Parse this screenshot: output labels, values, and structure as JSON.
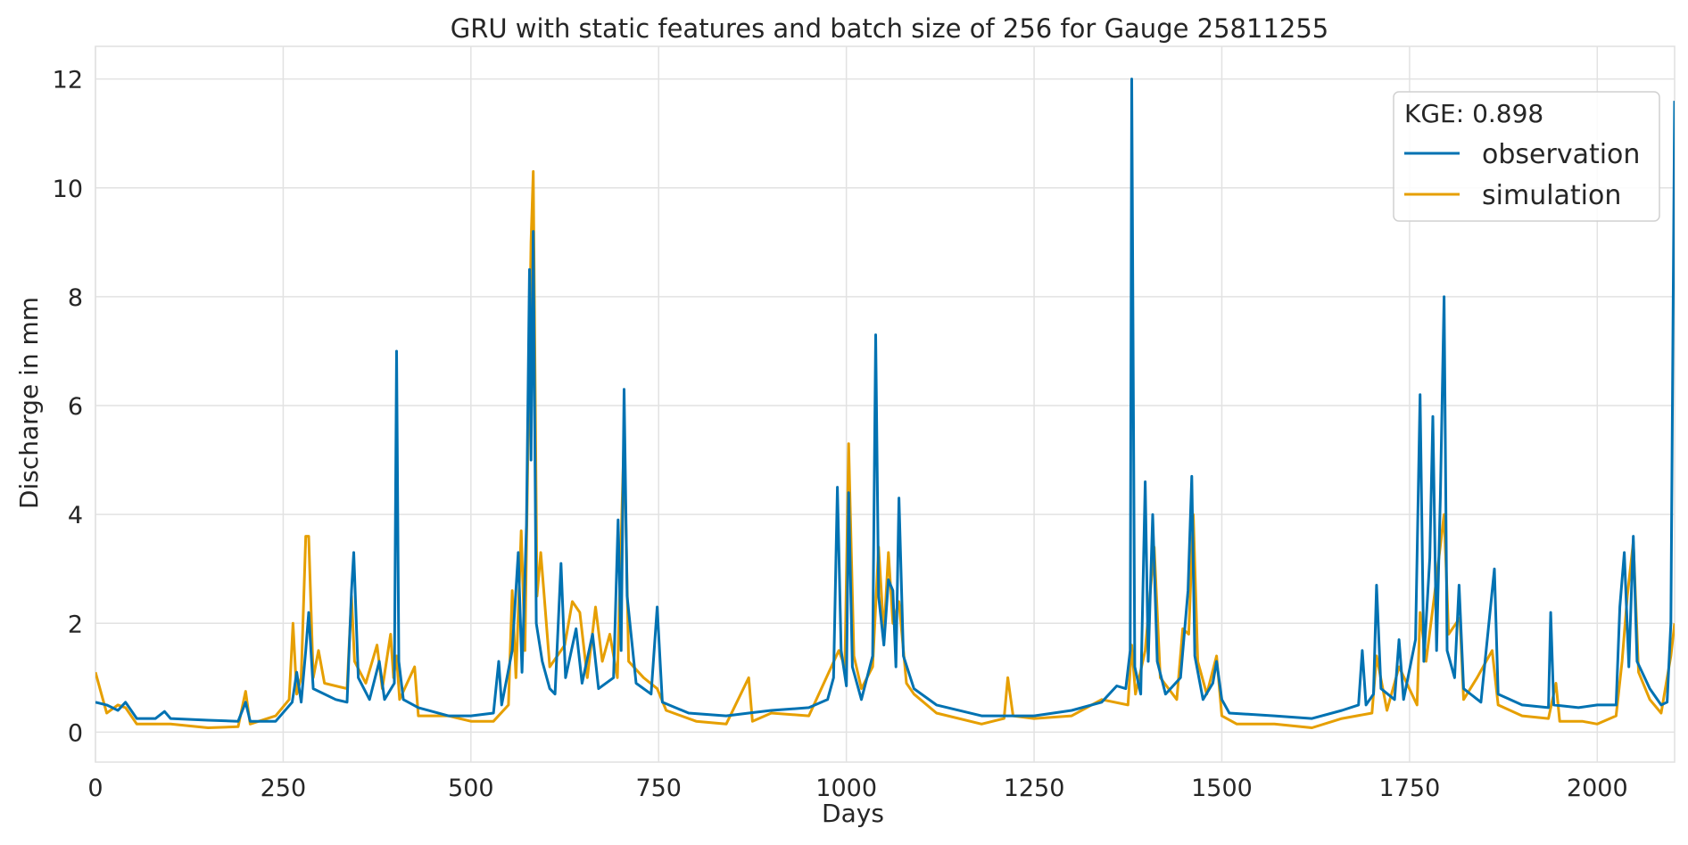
{
  "chart_data": {
    "type": "line",
    "title": "GRU with static features and batch size of 256 for Gauge 25811255",
    "xlabel": "Days",
    "ylabel": "Discharge in mm",
    "xlim": [
      0,
      2103
    ],
    "ylim": [
      -0.55,
      12.6
    ],
    "x_ticks": [
      "0",
      "250",
      "500",
      "750",
      "1000",
      "1250",
      "1500",
      "1750",
      "2000"
    ],
    "y_ticks": [
      "0",
      "2",
      "4",
      "6",
      "8",
      "10",
      "12"
    ],
    "grid": true,
    "legend": {
      "title": "KGE: 0.898",
      "position": "top-right"
    },
    "series": [
      {
        "name": "observation",
        "color": "#0072b2",
        "points": [
          [
            0,
            0.55
          ],
          [
            15,
            0.5
          ],
          [
            30,
            0.4
          ],
          [
            40,
            0.55
          ],
          [
            55,
            0.25
          ],
          [
            80,
            0.25
          ],
          [
            92,
            0.38
          ],
          [
            100,
            0.25
          ],
          [
            150,
            0.22
          ],
          [
            190,
            0.2
          ],
          [
            200,
            0.55
          ],
          [
            206,
            0.2
          ],
          [
            240,
            0.2
          ],
          [
            262,
            0.55
          ],
          [
            268,
            1.1
          ],
          [
            274,
            0.55
          ],
          [
            280,
            1.5
          ],
          [
            284,
            2.2
          ],
          [
            290,
            0.8
          ],
          [
            320,
            0.6
          ],
          [
            335,
            0.55
          ],
          [
            341,
            2.6
          ],
          [
            344,
            3.3
          ],
          [
            350,
            1.0
          ],
          [
            365,
            0.6
          ],
          [
            378,
            1.3
          ],
          [
            385,
            0.6
          ],
          [
            398,
            0.9
          ],
          [
            401,
            7.0
          ],
          [
            404,
            1.3
          ],
          [
            410,
            0.6
          ],
          [
            430,
            0.45
          ],
          [
            470,
            0.3
          ],
          [
            500,
            0.3
          ],
          [
            530,
            0.35
          ],
          [
            537,
            1.3
          ],
          [
            541,
            0.5
          ],
          [
            555,
            1.5
          ],
          [
            563,
            3.3
          ],
          [
            568,
            1.1
          ],
          [
            574,
            3.8
          ],
          [
            578,
            8.5
          ],
          [
            580,
            5.0
          ],
          [
            583,
            9.2
          ],
          [
            587,
            2.0
          ],
          [
            595,
            1.3
          ],
          [
            605,
            0.8
          ],
          [
            612,
            0.7
          ],
          [
            620,
            3.1
          ],
          [
            626,
            1.0
          ],
          [
            640,
            1.9
          ],
          [
            648,
            0.9
          ],
          [
            662,
            1.8
          ],
          [
            670,
            0.8
          ],
          [
            690,
            1.0
          ],
          [
            696,
            3.9
          ],
          [
            700,
            1.5
          ],
          [
            704,
            6.3
          ],
          [
            708,
            2.5
          ],
          [
            720,
            0.9
          ],
          [
            740,
            0.7
          ],
          [
            748,
            2.3
          ],
          [
            755,
            0.55
          ],
          [
            790,
            0.35
          ],
          [
            840,
            0.3
          ],
          [
            870,
            0.35
          ],
          [
            900,
            0.4
          ],
          [
            950,
            0.45
          ],
          [
            975,
            0.6
          ],
          [
            983,
            1.0
          ],
          [
            988,
            4.5
          ],
          [
            993,
            1.5
          ],
          [
            1000,
            0.85
          ],
          [
            1003,
            4.4
          ],
          [
            1008,
            1.2
          ],
          [
            1020,
            0.6
          ],
          [
            1035,
            1.4
          ],
          [
            1039,
            7.3
          ],
          [
            1043,
            2.5
          ],
          [
            1050,
            1.6
          ],
          [
            1056,
            2.8
          ],
          [
            1062,
            2.6
          ],
          [
            1066,
            1.2
          ],
          [
            1070,
            4.3
          ],
          [
            1076,
            1.4
          ],
          [
            1090,
            0.8
          ],
          [
            1120,
            0.5
          ],
          [
            1180,
            0.3
          ],
          [
            1250,
            0.3
          ],
          [
            1300,
            0.4
          ],
          [
            1340,
            0.55
          ],
          [
            1360,
            0.85
          ],
          [
            1372,
            0.8
          ],
          [
            1378,
            1.5
          ],
          [
            1380,
            12.0
          ],
          [
            1384,
            1.2
          ],
          [
            1392,
            0.7
          ],
          [
            1398,
            4.6
          ],
          [
            1402,
            1.3
          ],
          [
            1408,
            4.0
          ],
          [
            1414,
            1.3
          ],
          [
            1425,
            0.7
          ],
          [
            1445,
            1.0
          ],
          [
            1455,
            2.6
          ],
          [
            1460,
            4.7
          ],
          [
            1464,
            1.4
          ],
          [
            1475,
            0.6
          ],
          [
            1488,
            0.9
          ],
          [
            1493,
            1.3
          ],
          [
            1500,
            0.6
          ],
          [
            1510,
            0.35
          ],
          [
            1570,
            0.3
          ],
          [
            1620,
            0.25
          ],
          [
            1660,
            0.4
          ],
          [
            1682,
            0.5
          ],
          [
            1687,
            1.5
          ],
          [
            1692,
            0.5
          ],
          [
            1702,
            0.7
          ],
          [
            1706,
            2.7
          ],
          [
            1712,
            0.8
          ],
          [
            1730,
            0.6
          ],
          [
            1736,
            1.7
          ],
          [
            1742,
            0.6
          ],
          [
            1758,
            1.7
          ],
          [
            1764,
            6.2
          ],
          [
            1769,
            1.3
          ],
          [
            1777,
            3.2
          ],
          [
            1781,
            5.8
          ],
          [
            1786,
            1.5
          ],
          [
            1791,
            4.3
          ],
          [
            1796,
            8.0
          ],
          [
            1800,
            1.5
          ],
          [
            1810,
            1.0
          ],
          [
            1816,
            2.7
          ],
          [
            1822,
            0.8
          ],
          [
            1845,
            0.55
          ],
          [
            1863,
            3.0
          ],
          [
            1868,
            0.7
          ],
          [
            1900,
            0.5
          ],
          [
            1935,
            0.45
          ],
          [
            1938,
            2.2
          ],
          [
            1942,
            0.5
          ],
          [
            1975,
            0.45
          ],
          [
            2000,
            0.5
          ],
          [
            2025,
            0.5
          ],
          [
            2030,
            2.3
          ],
          [
            2036,
            3.3
          ],
          [
            2042,
            1.2
          ],
          [
            2048,
            3.6
          ],
          [
            2053,
            1.3
          ],
          [
            2070,
            0.8
          ],
          [
            2085,
            0.5
          ],
          [
            2093,
            0.55
          ],
          [
            2098,
            2.0
          ],
          [
            2103,
            11.6
          ]
        ]
      },
      {
        "name": "simulation",
        "color": "#e69f00",
        "points": [
          [
            0,
            1.1
          ],
          [
            8,
            0.7
          ],
          [
            15,
            0.35
          ],
          [
            30,
            0.5
          ],
          [
            40,
            0.45
          ],
          [
            55,
            0.15
          ],
          [
            80,
            0.15
          ],
          [
            100,
            0.15
          ],
          [
            150,
            0.08
          ],
          [
            190,
            0.1
          ],
          [
            200,
            0.75
          ],
          [
            206,
            0.15
          ],
          [
            240,
            0.3
          ],
          [
            258,
            0.6
          ],
          [
            263,
            2.0
          ],
          [
            268,
            0.7
          ],
          [
            274,
            1.0
          ],
          [
            280,
            3.6
          ],
          [
            284,
            3.6
          ],
          [
            290,
            1.0
          ],
          [
            297,
            1.5
          ],
          [
            305,
            0.9
          ],
          [
            335,
            0.8
          ],
          [
            341,
            2.5
          ],
          [
            345,
            1.3
          ],
          [
            360,
            0.9
          ],
          [
            375,
            1.6
          ],
          [
            382,
            0.8
          ],
          [
            393,
            1.8
          ],
          [
            397,
            1.0
          ],
          [
            401,
            1.4
          ],
          [
            405,
            0.6
          ],
          [
            425,
            1.2
          ],
          [
            430,
            0.3
          ],
          [
            470,
            0.3
          ],
          [
            500,
            0.2
          ],
          [
            530,
            0.2
          ],
          [
            550,
            0.5
          ],
          [
            555,
            2.6
          ],
          [
            560,
            1.0
          ],
          [
            567,
            3.7
          ],
          [
            572,
            1.5
          ],
          [
            580,
            9.0
          ],
          [
            583,
            10.3
          ],
          [
            588,
            2.5
          ],
          [
            593,
            3.3
          ],
          [
            597,
            2.6
          ],
          [
            605,
            1.2
          ],
          [
            625,
            1.6
          ],
          [
            635,
            2.4
          ],
          [
            645,
            2.2
          ],
          [
            655,
            1.0
          ],
          [
            666,
            2.3
          ],
          [
            675,
            1.3
          ],
          [
            685,
            1.8
          ],
          [
            695,
            1.0
          ],
          [
            704,
            5.5
          ],
          [
            710,
            1.3
          ],
          [
            730,
            1.0
          ],
          [
            748,
            0.8
          ],
          [
            760,
            0.4
          ],
          [
            800,
            0.2
          ],
          [
            840,
            0.15
          ],
          [
            870,
            1.0
          ],
          [
            875,
            0.2
          ],
          [
            900,
            0.35
          ],
          [
            950,
            0.3
          ],
          [
            990,
            1.5
          ],
          [
            998,
            1.2
          ],
          [
            1003,
            5.3
          ],
          [
            1010,
            1.4
          ],
          [
            1020,
            0.8
          ],
          [
            1035,
            1.2
          ],
          [
            1043,
            3.4
          ],
          [
            1050,
            1.8
          ],
          [
            1056,
            3.3
          ],
          [
            1062,
            2.0
          ],
          [
            1070,
            2.4
          ],
          [
            1080,
            0.9
          ],
          [
            1090,
            0.7
          ],
          [
            1120,
            0.35
          ],
          [
            1180,
            0.15
          ],
          [
            1210,
            0.25
          ],
          [
            1215,
            1.0
          ],
          [
            1222,
            0.3
          ],
          [
            1250,
            0.25
          ],
          [
            1300,
            0.3
          ],
          [
            1340,
            0.6
          ],
          [
            1375,
            0.5
          ],
          [
            1380,
            1.6
          ],
          [
            1385,
            0.7
          ],
          [
            1398,
            1.5
          ],
          [
            1410,
            3.4
          ],
          [
            1418,
            1.0
          ],
          [
            1440,
            0.6
          ],
          [
            1448,
            1.9
          ],
          [
            1456,
            1.8
          ],
          [
            1462,
            4.0
          ],
          [
            1468,
            1.3
          ],
          [
            1480,
            0.7
          ],
          [
            1493,
            1.4
          ],
          [
            1500,
            0.3
          ],
          [
            1520,
            0.15
          ],
          [
            1570,
            0.15
          ],
          [
            1620,
            0.08
          ],
          [
            1660,
            0.25
          ],
          [
            1700,
            0.35
          ],
          [
            1706,
            1.4
          ],
          [
            1720,
            0.4
          ],
          [
            1736,
            1.2
          ],
          [
            1760,
            0.5
          ],
          [
            1764,
            2.2
          ],
          [
            1772,
            1.3
          ],
          [
            1783,
            2.5
          ],
          [
            1796,
            4.0
          ],
          [
            1802,
            1.8
          ],
          [
            1817,
            2.1
          ],
          [
            1822,
            0.6
          ],
          [
            1840,
            1.0
          ],
          [
            1860,
            1.5
          ],
          [
            1868,
            0.5
          ],
          [
            1900,
            0.3
          ],
          [
            1935,
            0.25
          ],
          [
            1945,
            0.9
          ],
          [
            1950,
            0.2
          ],
          [
            1980,
            0.2
          ],
          [
            2000,
            0.15
          ],
          [
            2025,
            0.3
          ],
          [
            2033,
            1.3
          ],
          [
            2040,
            2.5
          ],
          [
            2048,
            3.5
          ],
          [
            2055,
            1.1
          ],
          [
            2070,
            0.6
          ],
          [
            2085,
            0.35
          ],
          [
            2098,
            1.4
          ],
          [
            2103,
            2.0
          ]
        ]
      }
    ]
  }
}
